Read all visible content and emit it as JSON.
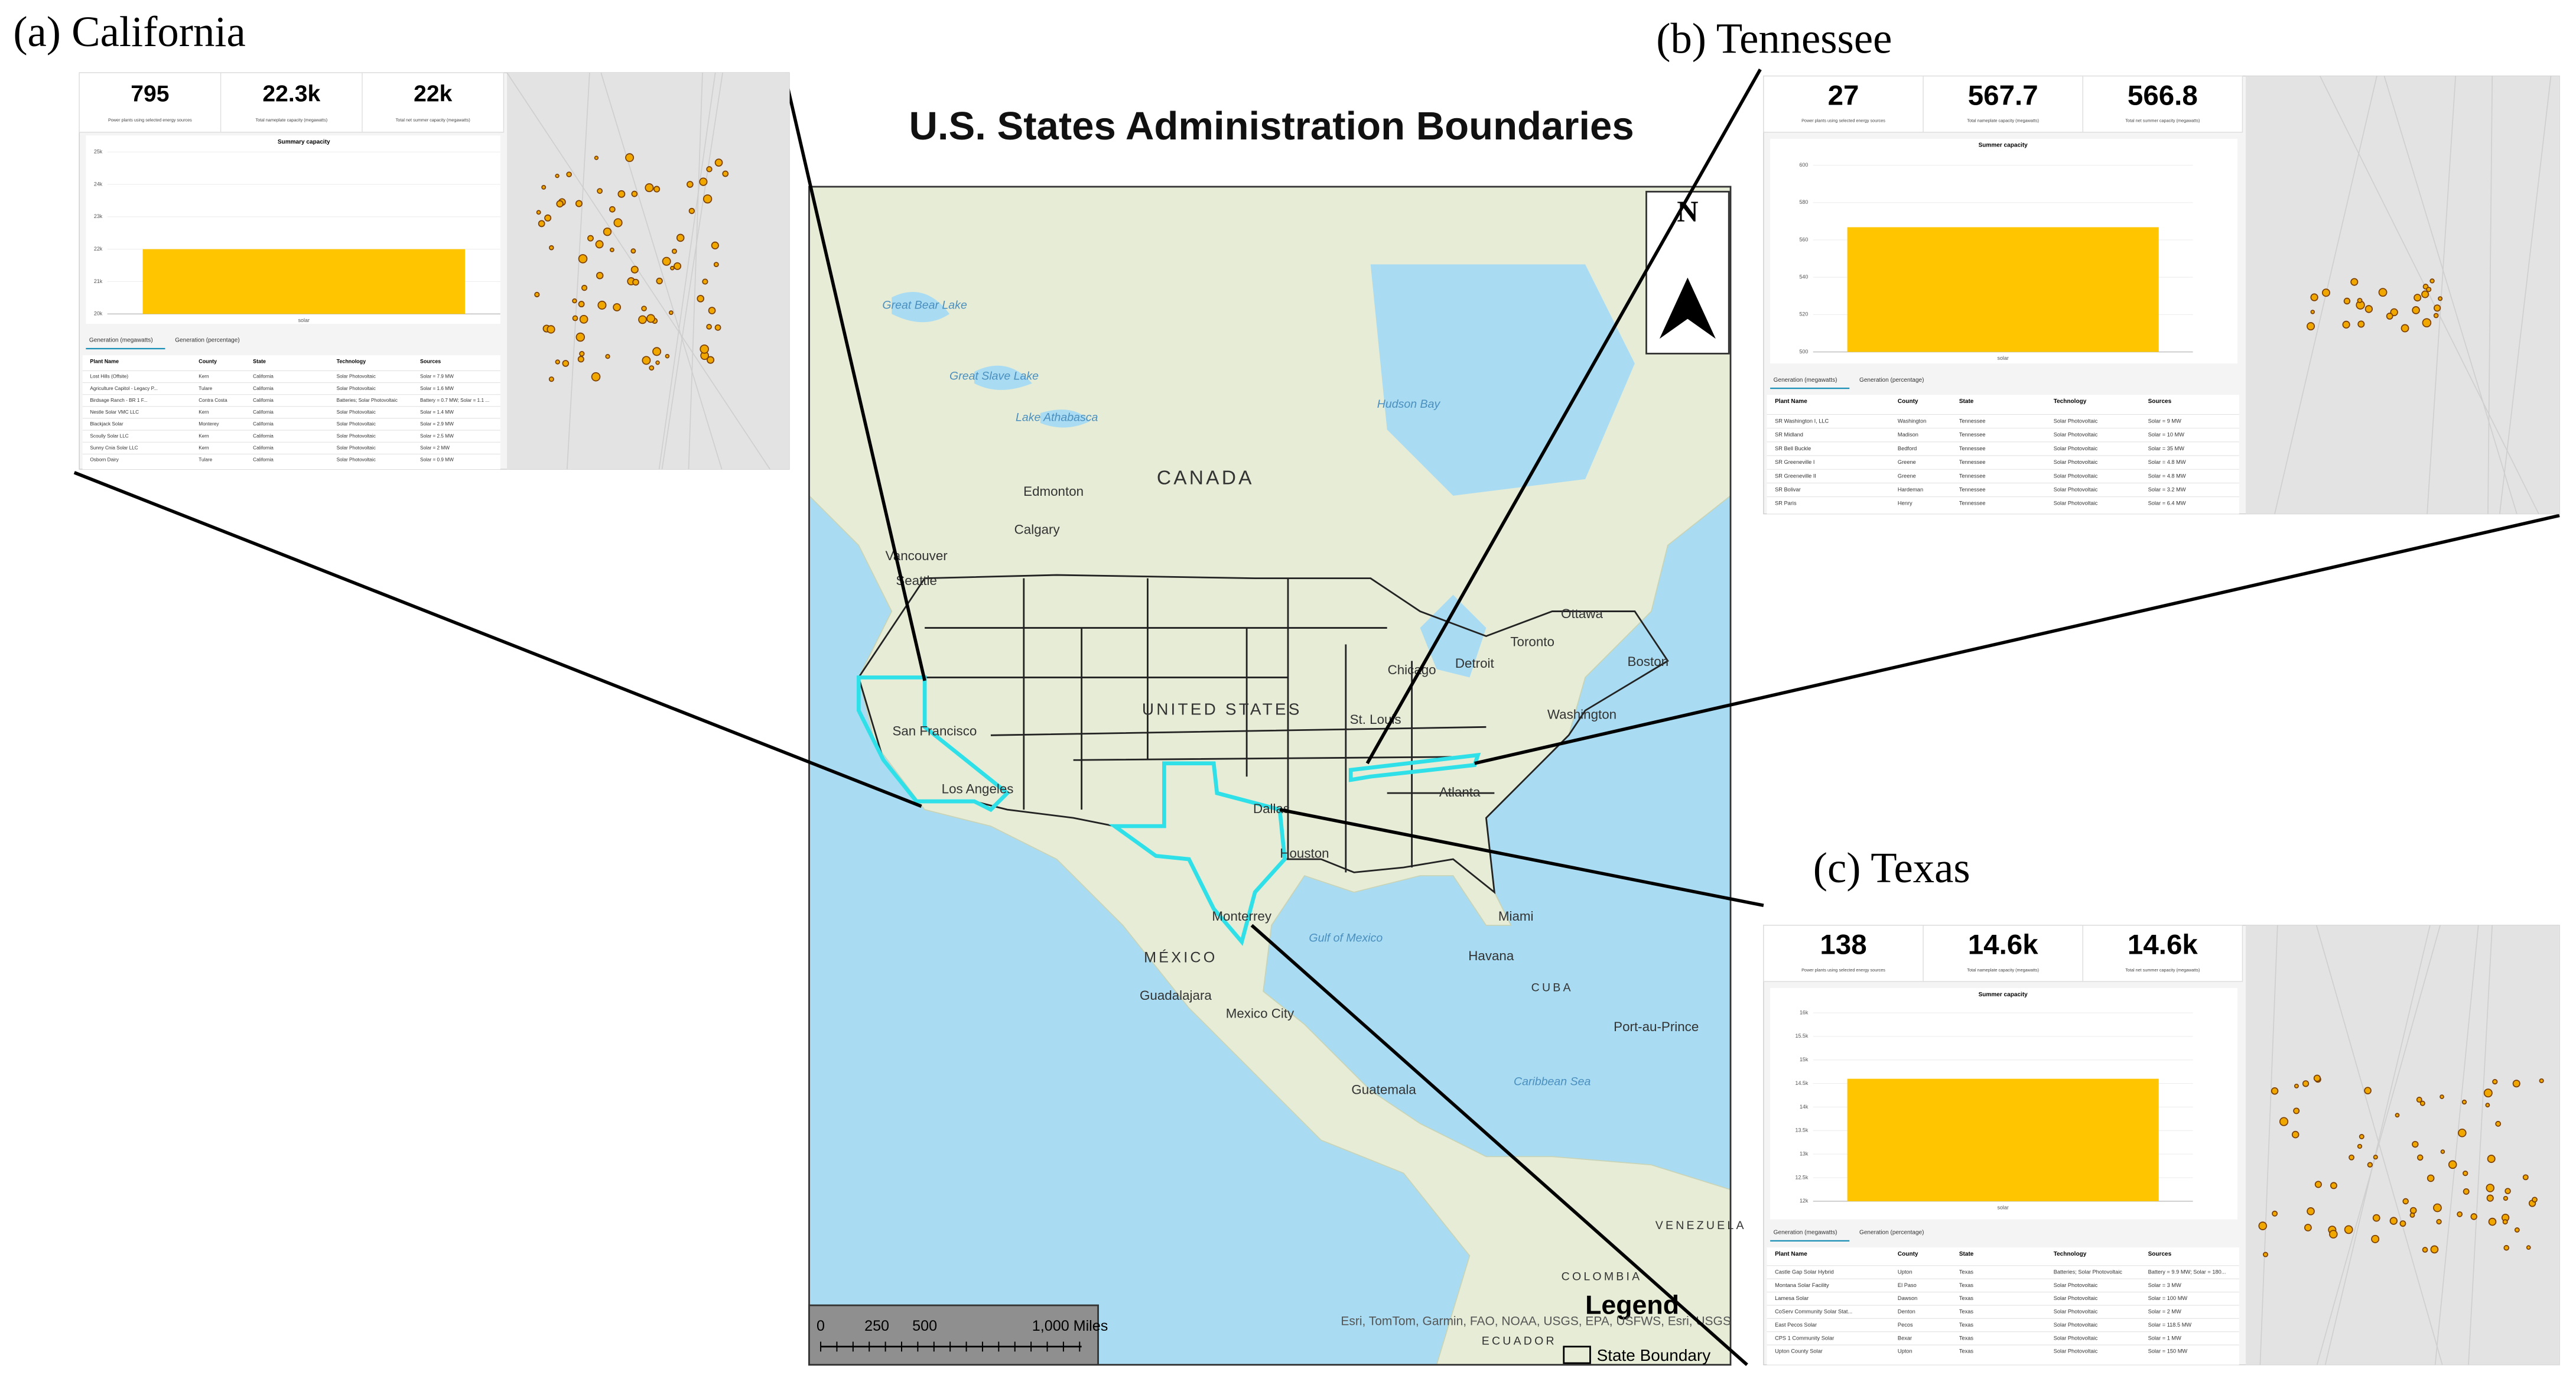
{
  "title": "U.S. States Administration Boundaries",
  "map": {
    "labels": [
      "CANADA",
      "UNITED STATES",
      "MÉXICO",
      "Edmonton",
      "Calgary",
      "Vancouver",
      "Seattle",
      "San Francisco",
      "Los Angeles",
      "Dallas",
      "Houston",
      "Monterrey",
      "Chicago",
      "Detroit",
      "Toronto",
      "Ottawa",
      "Boston",
      "Washington",
      "St. Louis",
      "Atlanta",
      "Miami",
      "Havana",
      "CUBA",
      "Guadalajara",
      "Mexico City",
      "Guatemala",
      "Port-au-Prince",
      "Gulf of Mexico",
      "Caribbean Sea",
      "Hudson Bay",
      "Great Bear Lake",
      "Great Slave Lake",
      "Lake Athabasca",
      "COLOMBIA",
      "VENEZUELA",
      "ECUADOR"
    ],
    "north": "N",
    "scale": [
      "0",
      "250",
      "500",
      "1,000 Miles"
    ],
    "legend": {
      "title": "Legend",
      "item": "State Boundary"
    },
    "attribution": "Esri, TomTom, Garmin, FAO, NOAA, USGS, EPA, USFWS, Esri, USGS"
  },
  "panels": [
    {
      "label": "(a) California",
      "kpis": [
        {
          "value": "795",
          "label": "Power plants using selected energy sources"
        },
        {
          "value": "22.3k",
          "label": "Total nameplate capacity (megawatts)"
        },
        {
          "value": "22k",
          "label": "Total net summer capacity (megawatts)"
        }
      ],
      "chart": {
        "type": "bar",
        "title": "Summary capacity",
        "categories": [
          "solar"
        ],
        "values": [
          22000
        ],
        "color": "#ffc600",
        "ylim": [
          20000,
          25000
        ],
        "yticks": [
          {
            "value": 20000,
            "label": "20k"
          },
          {
            "value": 21000,
            "label": "21k"
          },
          {
            "value": 22000,
            "label": "22k"
          },
          {
            "value": 23000,
            "label": "23k"
          },
          {
            "value": 24000,
            "label": "24k"
          },
          {
            "value": 25000,
            "label": "25k"
          }
        ]
      },
      "tabs": [
        "Generation (megawatts)",
        "Generation (percentage)"
      ],
      "table": {
        "header": [
          "Plant Name",
          "County",
          "State",
          "Technology",
          "Sources"
        ],
        "rows": [
          [
            "Lost Hills (Offsite)",
            "Kern",
            "California",
            "Solar Photovoltaic",
            "Solar = 7.9 MW"
          ],
          [
            "Agriculture Capitol - Legacy P...",
            "Tulare",
            "California",
            "Solar Photovoltaic",
            "Solar = 1.6 MW"
          ],
          [
            "Birdsage Ranch - BR 1 F...",
            "Contra Costa",
            "California",
            "Batteries; Solar Photovoltaic",
            "Battery = 0.7 MW; Solar = 1.1 ..."
          ],
          [
            "Nestle Solar VMC LLC",
            "Kern",
            "California",
            "Solar Photovoltaic",
            "Solar = 1.4 MW"
          ],
          [
            "Blackjack Solar",
            "Monterey",
            "California",
            "Solar Photovoltaic",
            "Solar = 2.9 MW"
          ],
          [
            "Scoully Solar LLC",
            "Kern",
            "California",
            "Solar Photovoltaic",
            "Solar = 2.5 MW"
          ],
          [
            "Sunny Cnia Solar LLC",
            "Kern",
            "California",
            "Solar Photovoltaic",
            "Solar = 2 MW"
          ],
          [
            "Osborn Dairy",
            "Tulare",
            "California",
            "Solar Photovoltaic",
            "Solar = 0.9 MW"
          ]
        ]
      }
    },
    {
      "label": "(b) Tennessee",
      "kpis": [
        {
          "value": "27",
          "label": "Power plants using selected energy sources"
        },
        {
          "value": "567.7",
          "label": "Total nameplate capacity (megawatts)"
        },
        {
          "value": "566.8",
          "label": "Total net summer capacity (megawatts)"
        }
      ],
      "chart": {
        "type": "bar",
        "title": "Summer capacity",
        "categories": [
          "solar"
        ],
        "values": [
          566.8
        ],
        "color": "#ffc600",
        "ylim": [
          500,
          600
        ],
        "yticks": [
          500,
          520,
          540,
          560,
          580,
          600
        ]
      },
      "tabs": [
        "Generation (megawatts)",
        "Generation (percentage)"
      ],
      "table": {
        "header": [
          "Plant Name",
          "County",
          "State",
          "Technology",
          "Sources"
        ],
        "rows": [
          [
            "SR Washington I, LLC",
            "Washington",
            "Tennessee",
            "Solar Photovoltaic",
            "Solar = 9 MW"
          ],
          [
            "SR Midland",
            "Madison",
            "Tennessee",
            "Solar Photovoltaic",
            "Solar = 10 MW"
          ],
          [
            "SR Bell Buckle",
            "Bedford",
            "Tennessee",
            "Solar Photovoltaic",
            "Solar = 35 MW"
          ],
          [
            "SR Greeneville I",
            "Greene",
            "Tennessee",
            "Solar Photovoltaic",
            "Solar = 4.8 MW"
          ],
          [
            "SR Greeneville II",
            "Greene",
            "Tennessee",
            "Solar Photovoltaic",
            "Solar = 4.8 MW"
          ],
          [
            "SR Bolivar",
            "Hardeman",
            "Tennessee",
            "Solar Photovoltaic",
            "Solar = 3.2 MW"
          ],
          [
            "SR Paris",
            "Henry",
            "Tennessee",
            "Solar Photovoltaic",
            "Solar = 6.4 MW"
          ]
        ]
      }
    },
    {
      "label": "(c) Texas",
      "kpis": [
        {
          "value": "138",
          "label": "Power plants using selected energy sources"
        },
        {
          "value": "14.6k",
          "label": "Total nameplate capacity (megawatts)"
        },
        {
          "value": "14.6k",
          "label": "Total net summer capacity (megawatts)"
        }
      ],
      "chart": {
        "type": "bar",
        "title": "Summer capacity",
        "categories": [
          "solar"
        ],
        "values": [
          14600
        ],
        "color": "#ffc600",
        "ylim": [
          12000,
          16000
        ],
        "yticks": [
          {
            "value": 12000,
            "label": "12k"
          },
          {
            "value": 12500,
            "label": "12.5k"
          },
          {
            "value": 13000,
            "label": "13k"
          },
          {
            "value": 13500,
            "label": "13.5k"
          },
          {
            "value": 14000,
            "label": "14k"
          },
          {
            "value": 14500,
            "label": "14.5k"
          },
          {
            "value": 15000,
            "label": "15k"
          },
          {
            "value": 15500,
            "label": "15.5k"
          },
          {
            "value": 16000,
            "label": "16k"
          }
        ]
      },
      "tabs": [
        "Generation (megawatts)",
        "Generation (percentage)"
      ],
      "table": {
        "header": [
          "Plant Name",
          "County",
          "State",
          "Technology",
          "Sources"
        ],
        "rows": [
          [
            "Castle Gap Solar Hybrid",
            "Upton",
            "Texas",
            "Batteries; Solar Photovoltaic",
            "Battery = 9.9 MW; Solar = 180..."
          ],
          [
            "Montana Solar Facility",
            "El Paso",
            "Texas",
            "Solar Photovoltaic",
            "Solar = 3 MW"
          ],
          [
            "Lamesa Solar",
            "Dawson",
            "Texas",
            "Solar Photovoltaic",
            "Solar = 100 MW"
          ],
          [
            "CoServ Community Solar Stat...",
            "Denton",
            "Texas",
            "Solar Photovoltaic",
            "Solar = 2 MW"
          ],
          [
            "East Pecos Solar",
            "Pecos",
            "Texas",
            "Solar Photovoltaic",
            "Solar = 118.5 MW"
          ],
          [
            "CPS 1 Community Solar",
            "Bexar",
            "Texas",
            "Solar Photovoltaic",
            "Solar = 1 MW"
          ],
          [
            "Upton County Solar",
            "Upton",
            "Texas",
            "Solar Photovoltaic",
            "Solar = 150 MW"
          ]
        ]
      }
    }
  ]
}
